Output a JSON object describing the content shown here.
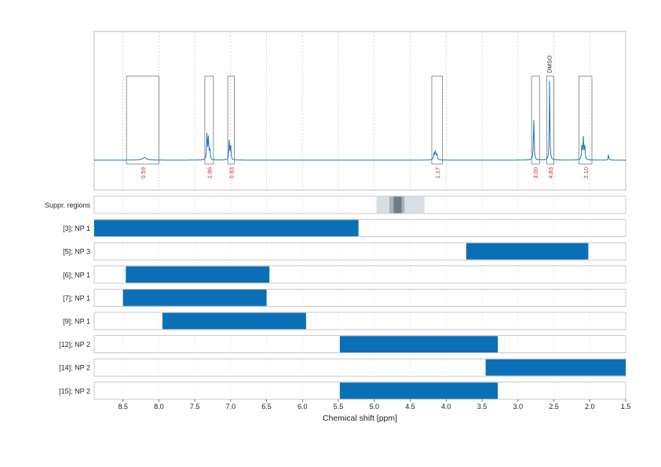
{
  "chart_data": {
    "type": "nmr-spectrum-with-region-bars",
    "xlabel": "Chemical shift [ppm]",
    "xlim": [
      8.9,
      1.5
    ],
    "x_reversed": true,
    "xticks": [
      8.5,
      8.0,
      7.5,
      7.0,
      6.5,
      6.0,
      5.5,
      5.0,
      4.5,
      4.0,
      3.5,
      3.0,
      2.5,
      2.0,
      1.5
    ],
    "xtick_labels": [
      "8.5",
      "8.0",
      "7.5",
      "7.0",
      "6.5",
      "6.0",
      "5.5",
      "5.0",
      "4.5",
      "4.0",
      "3.5",
      "3.0",
      "2.5",
      "2.0",
      "1.5"
    ],
    "grid": true,
    "colors": {
      "spectrum": "#1f77b4",
      "bar": "#0b6fb8",
      "integral": "#d62728",
      "box": "#777777",
      "suppr_light": "#d9dee3",
      "suppr_mid": "#a9b2ba",
      "suppr_dark": "#6e7b86"
    },
    "spectrum": {
      "peaks": [
        {
          "x": 8.2,
          "h": 0.03,
          "w": 0.03
        },
        {
          "x": 7.33,
          "h": 0.3,
          "w": 0.006
        },
        {
          "x": 7.31,
          "h": 0.24,
          "w": 0.006
        },
        {
          "x": 7.29,
          "h": 0.12,
          "w": 0.006
        },
        {
          "x": 7.02,
          "h": 0.21,
          "w": 0.006
        },
        {
          "x": 7.0,
          "h": 0.17,
          "w": 0.006
        },
        {
          "x": 4.17,
          "h": 0.07,
          "w": 0.008
        },
        {
          "x": 4.15,
          "h": 0.09,
          "w": 0.008
        },
        {
          "x": 4.13,
          "h": 0.06,
          "w": 0.008
        },
        {
          "x": 2.78,
          "h": 0.46,
          "w": 0.006
        },
        {
          "x": 2.56,
          "h": 0.88,
          "w": 0.005
        },
        {
          "x": 2.11,
          "h": 0.16,
          "w": 0.006
        },
        {
          "x": 2.09,
          "h": 0.24,
          "w": 0.006
        },
        {
          "x": 2.07,
          "h": 0.16,
          "w": 0.006
        },
        {
          "x": 1.74,
          "h": 0.06,
          "w": 0.005
        }
      ],
      "integral_regions": [
        {
          "from": 8.45,
          "to": 8.0,
          "value": "0.59"
        },
        {
          "from": 7.36,
          "to": 7.24,
          "value": "1.86"
        },
        {
          "from": 7.04,
          "to": 6.95,
          "value": "0.83"
        },
        {
          "from": 4.2,
          "to": 4.05,
          "value": "1.17"
        },
        {
          "from": 2.81,
          "to": 2.7,
          "value": "3.00"
        },
        {
          "from": 2.6,
          "to": 2.5,
          "value": "4.83"
        },
        {
          "from": 2.15,
          "to": 1.97,
          "value": "2.10"
        }
      ],
      "solvent_label": {
        "text": "DMSO",
        "x": 2.56
      }
    },
    "suppr_regions": {
      "label": "Suppr. regions",
      "bands": [
        {
          "from": 4.97,
          "to": 4.3,
          "level": "light"
        },
        {
          "from": 4.79,
          "to": 4.58,
          "level": "mid"
        },
        {
          "from": 4.73,
          "to": 4.62,
          "level": "dark"
        }
      ]
    },
    "rows": [
      {
        "label": "[3]; NP 1",
        "from": 8.9,
        "to": 5.22
      },
      {
        "label": "[5]; NP 3",
        "from": 3.72,
        "to": 2.02
      },
      {
        "label": "[6]; NP 1",
        "from": 8.46,
        "to": 6.46
      },
      {
        "label": "[7]; NP 1",
        "from": 8.5,
        "to": 6.5
      },
      {
        "label": "[9]; NP 1",
        "from": 7.95,
        "to": 5.95
      },
      {
        "label": "[12]; NP 2",
        "from": 5.48,
        "to": 3.28
      },
      {
        "label": "[14]; NP 2",
        "from": 3.45,
        "to": 1.5
      },
      {
        "label": "[15]; NP 2",
        "from": 5.48,
        "to": 3.28
      }
    ]
  }
}
